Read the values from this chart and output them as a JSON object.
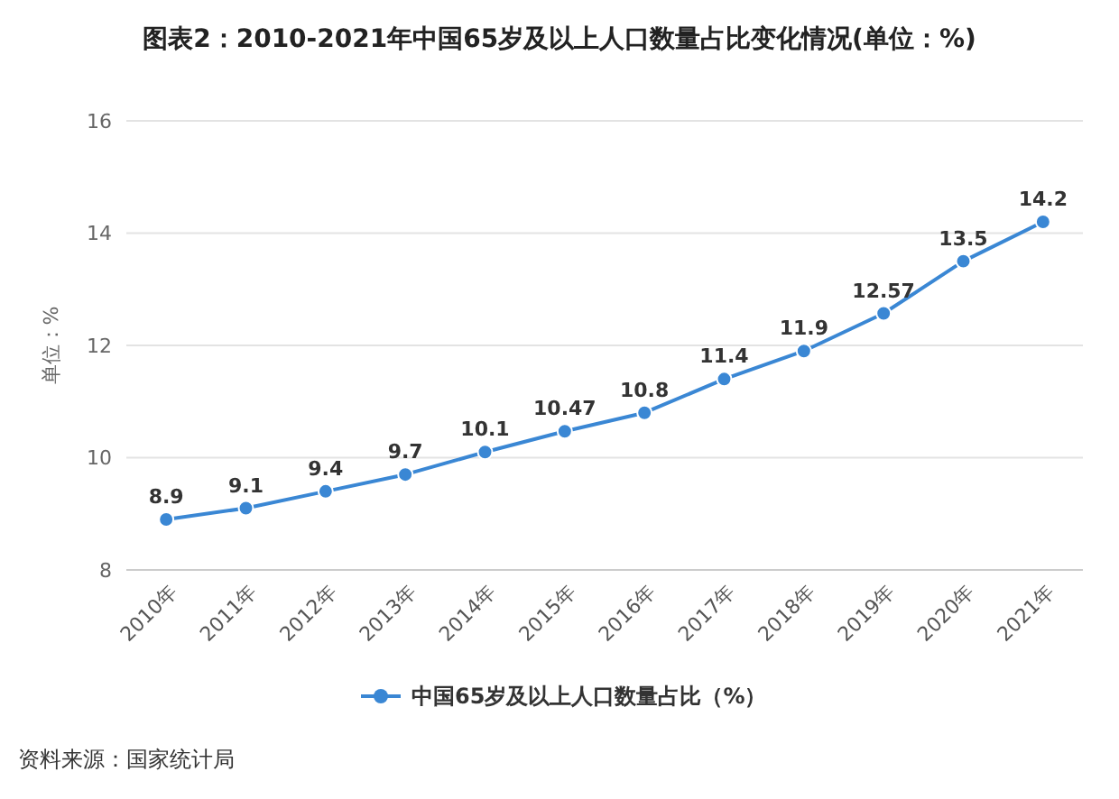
{
  "chart_data": {
    "type": "line",
    "title": "图表2：2010-2021年中国65岁及以上人口数量占比变化情况(单位：%)",
    "ylabel": "单位：%",
    "categories": [
      "2010年",
      "2011年",
      "2012年",
      "2013年",
      "2014年",
      "2015年",
      "2016年",
      "2017年",
      "2018年",
      "2019年",
      "2020年",
      "2021年"
    ],
    "series": [
      {
        "name": "中国65岁及以上人口数量占比（%）",
        "color": "#3a87d4",
        "values": [
          8.9,
          9.1,
          9.4,
          9.7,
          10.1,
          10.47,
          10.8,
          11.4,
          11.9,
          12.57,
          13.5,
          14.2
        ]
      }
    ],
    "ylim": [
      8,
      16
    ],
    "yticks": [
      8,
      10,
      12,
      14,
      16
    ],
    "grid": "y",
    "legend": "bottom",
    "marker": "circle",
    "line_style": "solid",
    "data_labels": true,
    "annotations": [
      "资料来源：国家统计局"
    ]
  }
}
